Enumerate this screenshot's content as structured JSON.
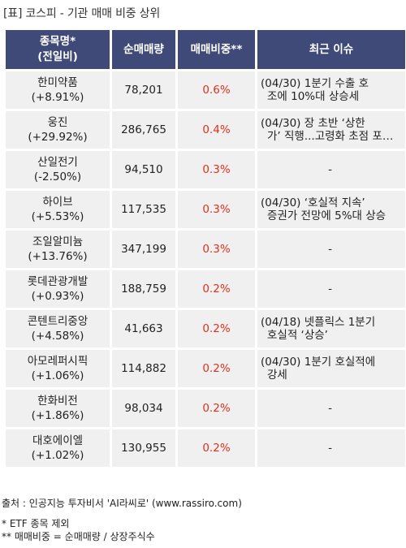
{
  "title": "[표] 코스피 - 기관 매매 비중 상위",
  "headers": {
    "name": [
      "종목명*",
      "(전일비)"
    ],
    "volume": "순매매량",
    "ratio": "매매비중**",
    "issue": "최근 이슈"
  },
  "rows": [
    {
      "name": "한미약품",
      "change": "(+8.91%)",
      "volume": "78,201",
      "ratio": "0.6%",
      "issue": [
        "(04/30) 1분기 수출 호",
        "조에 10%대 상승세"
      ]
    },
    {
      "name": "웅진",
      "change": "(+29.92%)",
      "volume": "286,765",
      "ratio": "0.4%",
      "issue": [
        "(04/30) 장 초반 ‘상한",
        "가’ 직행...고령화 초점 포트폴..."
      ]
    },
    {
      "name": "산일전기",
      "change": "(-2.50%)",
      "volume": "94,510",
      "ratio": "0.3%",
      "issue": [
        "-"
      ]
    },
    {
      "name": "하이브",
      "change": "(+5.53%)",
      "volume": "117,535",
      "ratio": "0.3%",
      "issue": [
        "(04/30) ‘호실적 지속’",
        "증권가 전망에 5%대 상승"
      ]
    },
    {
      "name": "조일알미늄",
      "change": "(+13.76%)",
      "volume": "347,199",
      "ratio": "0.3%",
      "issue": [
        "-"
      ]
    },
    {
      "name": "롯데관광개발",
      "change": "(+0.93%)",
      "volume": "188,759",
      "ratio": "0.2%",
      "issue": [
        "-"
      ]
    },
    {
      "name": "콘텐트리중앙",
      "change": "(+4.58%)",
      "volume": "41,663",
      "ratio": "0.2%",
      "issue": [
        "(04/18) 넷플릭스 1분기",
        "호실적 ‘상승’"
      ]
    },
    {
      "name": "아모레퍼시픽",
      "change": "(+1.06%)",
      "volume": "114,882",
      "ratio": "0.2%",
      "issue": [
        "(04/30) 1분기 호실적에",
        "강세"
      ]
    },
    {
      "name": "한화비전",
      "change": "(+1.86%)",
      "volume": "98,034",
      "ratio": "0.2%",
      "issue": [
        "-"
      ]
    },
    {
      "name": "대호에이엘",
      "change": "(+1.02%)",
      "volume": "130,955",
      "ratio": "0.2%",
      "issue": [
        "-"
      ]
    }
  ],
  "footer": {
    "source": "출처 : 인공지능 투자비서 'AI라씨로' (www.rassiro.com)",
    "note1": "* ETF 종목 제외",
    "note2": "** 매매비중 = 순매매량 / 상장주식수"
  }
}
